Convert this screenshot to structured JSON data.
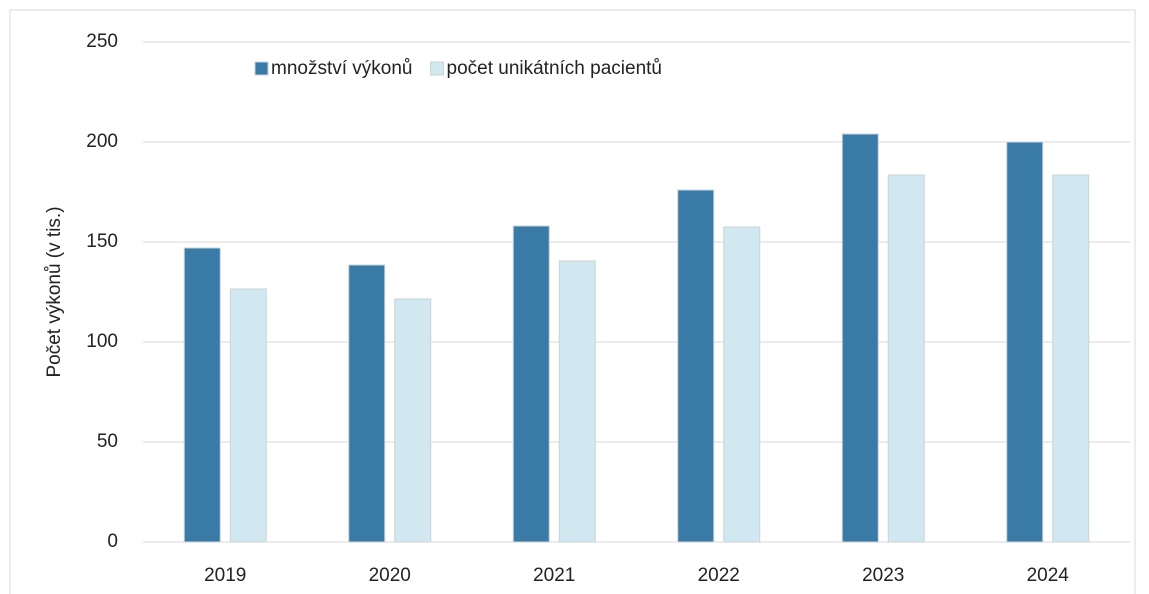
{
  "chart_data": {
    "type": "bar",
    "categories": [
      "2019",
      "2020",
      "2021",
      "2022",
      "2023",
      "2024"
    ],
    "series": [
      {
        "name": "množství výkonů",
        "color": "#3a7aa7",
        "values": [
          147,
          138.5,
          158,
          176,
          204,
          200
        ]
      },
      {
        "name": "počet unikátních pacientů",
        "color": "#d2e8f0",
        "values": [
          126.5,
          121.5,
          140.5,
          157.5,
          183.5,
          183.5
        ]
      }
    ],
    "ylabel": "Počet výkonů (v tis.)",
    "ylim": [
      0,
      250
    ],
    "yticks": [
      0,
      50,
      100,
      150,
      200,
      250
    ],
    "grid": true,
    "legend": "top"
  }
}
